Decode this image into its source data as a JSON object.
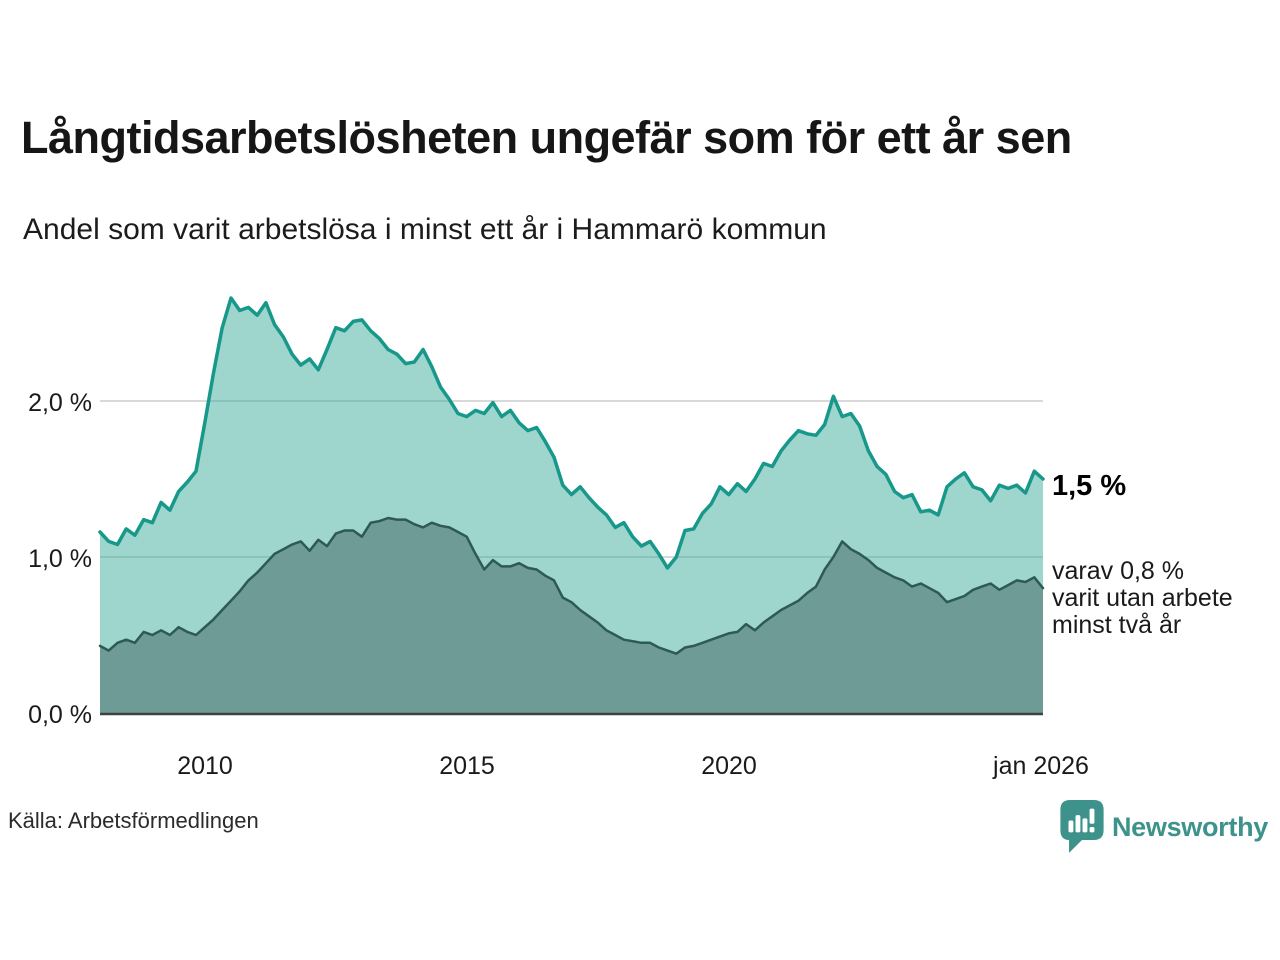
{
  "header": {
    "title": "Långtidsarbetslösheten ungefär som för ett år sen",
    "subtitle": "Andel som varit arbetslösa i minst ett år i Hammarö kommun"
  },
  "annotations": {
    "latest_total": "1,5 %",
    "secondary_line1": "varav 0,8 %",
    "secondary_line2": "varit utan arbete",
    "secondary_line3": "minst två år"
  },
  "source": {
    "label": "Källa: Arbetsförmedlingen"
  },
  "branding": {
    "name": "Newsworthy",
    "icon": "newsworthy-logo-icon",
    "color": "#3d938b"
  },
  "chart_data": {
    "type": "area",
    "title": "Långtidsarbetslösheten ungefär som för ett år sen",
    "subtitle": "Andel som varit arbetslösa i minst ett år i Hammarö kommun",
    "unit": "%",
    "grid": "horizontal",
    "grid_color": "#d9d9d9",
    "axis_color": "#3a4543",
    "xlim": [
      2008.0,
      2026.0
    ],
    "ylim": [
      0,
      2.9
    ],
    "x_start": 2008.0,
    "x_step_years": 0.166667,
    "x_ticks": [
      {
        "t": 2010,
        "label": "2010"
      },
      {
        "t": 2015,
        "label": "2015"
      },
      {
        "t": 2020,
        "label": "2020"
      },
      {
        "t": 2026,
        "label": "jan 2026"
      }
    ],
    "y_ticks": [
      {
        "value": 2,
        "label": "2,0 %"
      },
      {
        "value": 1,
        "label": "1,0 %"
      },
      {
        "value": 0,
        "label": "0,0 %"
      }
    ],
    "series": [
      {
        "name": "Andel arbetslösa minst ett år",
        "latest_label": "1,5 %",
        "line_color": "#17988a",
        "line_width": 3.5,
        "fill_color": "#3dab9b",
        "fill_opacity": 0.5,
        "values": [
          1.16,
          1.1,
          1.08,
          1.18,
          1.14,
          1.24,
          1.22,
          1.35,
          1.3,
          1.42,
          1.48,
          1.55,
          1.86,
          2.18,
          2.47,
          2.66,
          2.58,
          2.6,
          2.55,
          2.63,
          2.49,
          2.41,
          2.3,
          2.23,
          2.27,
          2.2,
          2.33,
          2.47,
          2.45,
          2.51,
          2.52,
          2.45,
          2.4,
          2.33,
          2.3,
          2.24,
          2.25,
          2.33,
          2.22,
          2.09,
          2.01,
          1.92,
          1.9,
          1.94,
          1.92,
          1.99,
          1.9,
          1.94,
          1.86,
          1.81,
          1.83,
          1.74,
          1.64,
          1.46,
          1.4,
          1.45,
          1.38,
          1.32,
          1.27,
          1.19,
          1.22,
          1.13,
          1.07,
          1.1,
          1.02,
          0.93,
          1.0,
          1.17,
          1.18,
          1.28,
          1.34,
          1.45,
          1.4,
          1.47,
          1.42,
          1.5,
          1.6,
          1.58,
          1.68,
          1.75,
          1.81,
          1.79,
          1.78,
          1.85,
          2.03,
          1.9,
          1.92,
          1.84,
          1.68,
          1.58,
          1.53,
          1.42,
          1.38,
          1.4,
          1.29,
          1.3,
          1.27,
          1.45,
          1.5,
          1.54,
          1.45,
          1.43,
          1.36,
          1.46,
          1.44,
          1.46,
          1.41,
          1.55,
          1.5
        ]
      },
      {
        "name": "varav utan arbete minst två år",
        "latest_label": "0,8 %",
        "line_color": "#2e5a55",
        "line_width": 2.5,
        "fill_color": "#6f9b97",
        "fill_opacity": 1,
        "values": [
          0.43,
          0.4,
          0.45,
          0.47,
          0.45,
          0.52,
          0.5,
          0.53,
          0.5,
          0.55,
          0.52,
          0.5,
          0.55,
          0.6,
          0.66,
          0.72,
          0.78,
          0.85,
          0.9,
          0.96,
          1.02,
          1.05,
          1.08,
          1.1,
          1.04,
          1.11,
          1.07,
          1.15,
          1.17,
          1.17,
          1.13,
          1.22,
          1.23,
          1.25,
          1.24,
          1.24,
          1.21,
          1.19,
          1.22,
          1.2,
          1.19,
          1.16,
          1.13,
          1.02,
          0.92,
          0.98,
          0.94,
          0.94,
          0.96,
          0.93,
          0.92,
          0.88,
          0.85,
          0.74,
          0.71,
          0.66,
          0.62,
          0.58,
          0.53,
          0.5,
          0.47,
          0.46,
          0.45,
          0.45,
          0.42,
          0.4,
          0.38,
          0.42,
          0.43,
          0.45,
          0.47,
          0.49,
          0.51,
          0.52,
          0.57,
          0.53,
          0.58,
          0.62,
          0.66,
          0.69,
          0.72,
          0.77,
          0.81,
          0.92,
          1.0,
          1.1,
          1.05,
          1.02,
          0.98,
          0.93,
          0.9,
          0.87,
          0.85,
          0.81,
          0.83,
          0.8,
          0.77,
          0.71,
          0.73,
          0.75,
          0.79,
          0.81,
          0.83,
          0.79,
          0.82,
          0.85,
          0.84,
          0.87,
          0.8
        ]
      }
    ]
  }
}
